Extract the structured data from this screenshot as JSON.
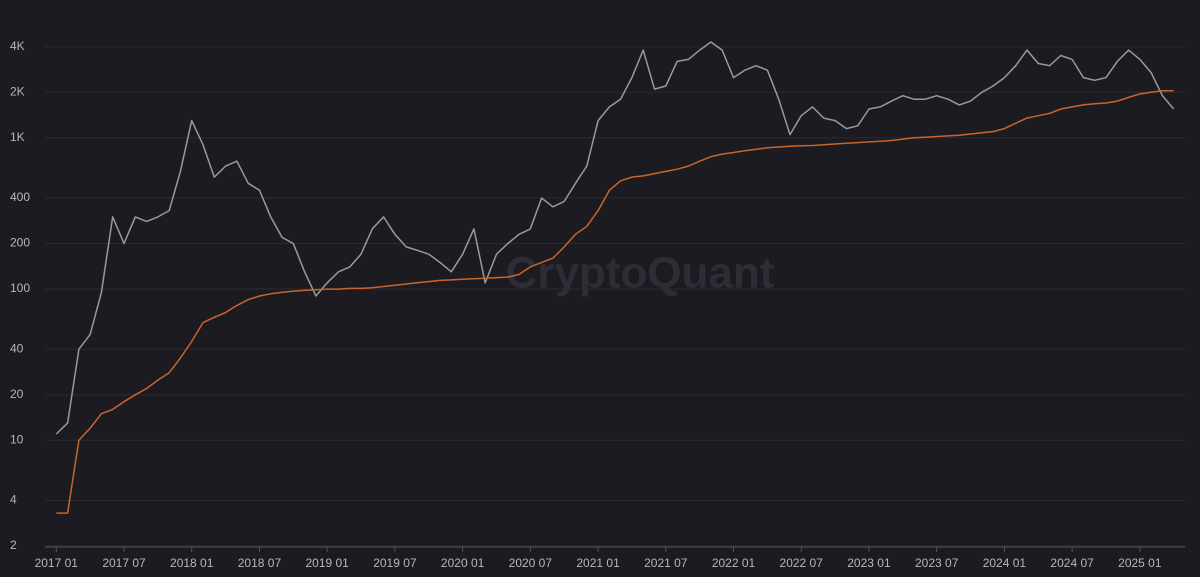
{
  "chart_data": {
    "type": "line",
    "watermark": "CryptoQuant",
    "log_y": true,
    "grid": true,
    "background": "#1d1b22",
    "x": [
      "2017-01",
      "2017-02",
      "2017-03",
      "2017-04",
      "2017-05",
      "2017-06",
      "2017-07",
      "2017-08",
      "2017-09",
      "2017-10",
      "2017-11",
      "2017-12",
      "2018-01",
      "2018-02",
      "2018-03",
      "2018-04",
      "2018-05",
      "2018-06",
      "2018-07",
      "2018-08",
      "2018-09",
      "2018-10",
      "2018-11",
      "2018-12",
      "2019-01",
      "2019-02",
      "2019-03",
      "2019-04",
      "2019-05",
      "2019-06",
      "2019-07",
      "2019-08",
      "2019-09",
      "2019-10",
      "2019-11",
      "2019-12",
      "2020-01",
      "2020-02",
      "2020-03",
      "2020-04",
      "2020-05",
      "2020-06",
      "2020-07",
      "2020-08",
      "2020-09",
      "2020-10",
      "2020-11",
      "2020-12",
      "2021-01",
      "2021-02",
      "2021-03",
      "2021-04",
      "2021-05",
      "2021-06",
      "2021-07",
      "2021-08",
      "2021-09",
      "2021-10",
      "2021-11",
      "2021-12",
      "2022-01",
      "2022-02",
      "2022-03",
      "2022-04",
      "2022-05",
      "2022-06",
      "2022-07",
      "2022-08",
      "2022-09",
      "2022-10",
      "2022-11",
      "2022-12",
      "2023-01",
      "2023-02",
      "2023-03",
      "2023-04",
      "2023-05",
      "2023-06",
      "2023-07",
      "2023-08",
      "2023-09",
      "2023-10",
      "2023-11",
      "2023-12",
      "2024-01",
      "2024-02",
      "2024-03",
      "2024-04",
      "2024-05",
      "2024-06",
      "2024-07",
      "2024-08",
      "2024-09",
      "2024-10",
      "2024-11",
      "2024-12",
      "2025-01",
      "2025-02",
      "2025-03",
      "2025-04"
    ],
    "series": [
      {
        "color": "#9a98a0",
        "values": [
          11,
          13,
          40,
          50,
          95,
          300,
          200,
          300,
          280,
          300,
          330,
          600,
          1300,
          900,
          550,
          650,
          700,
          500,
          450,
          300,
          220,
          200,
          130,
          90,
          110,
          130,
          140,
          170,
          250,
          300,
          230,
          190,
          180,
          170,
          150,
          130,
          170,
          250,
          110,
          170,
          200,
          230,
          250,
          400,
          350,
          380,
          500,
          650,
          1300,
          1600,
          1800,
          2500,
          3800,
          2100,
          2200,
          3200,
          3300,
          3800,
          4300,
          3800,
          2500,
          2800,
          3000,
          2800,
          1800,
          1050,
          1400,
          1600,
          1350,
          1300,
          1150,
          1200,
          1550,
          1600,
          1750,
          1900,
          1800,
          1800,
          1900,
          1800,
          1650,
          1750,
          2000,
          2200,
          2500,
          3000,
          3800,
          3100,
          3000,
          3500,
          3300,
          2500,
          2400,
          2500,
          3200,
          3800,
          3300,
          2700,
          1900,
          1550
        ]
      },
      {
        "color": "#c9652a",
        "values": [
          3.3,
          3.3,
          10,
          12,
          15,
          16,
          18,
          20,
          22,
          25,
          28,
          35,
          45,
          60,
          65,
          70,
          78,
          85,
          90,
          93,
          95,
          97,
          98,
          99,
          100,
          100,
          101,
          101,
          102,
          104,
          106,
          108,
          110,
          112,
          114,
          115,
          116,
          117,
          118,
          119,
          120,
          125,
          140,
          150,
          160,
          190,
          230,
          260,
          330,
          450,
          520,
          550,
          560,
          580,
          600,
          620,
          650,
          700,
          750,
          780,
          800,
          820,
          840,
          860,
          870,
          880,
          885,
          890,
          900,
          910,
          920,
          930,
          940,
          950,
          960,
          980,
          1000,
          1010,
          1020,
          1030,
          1040,
          1060,
          1080,
          1100,
          1150,
          1250,
          1350,
          1400,
          1450,
          1550,
          1600,
          1650,
          1680,
          1700,
          1750,
          1850,
          1950,
          2000,
          2050,
          2050
        ]
      }
    ],
    "xlim": [
      "2016-12",
      "2025-05"
    ],
    "xticks": [
      {
        "value": "2017-01",
        "label": "2017 01"
      },
      {
        "value": "2017-07",
        "label": "2017 07"
      },
      {
        "value": "2018-01",
        "label": "2018 01"
      },
      {
        "value": "2018-07",
        "label": "2018 07"
      },
      {
        "value": "2019-01",
        "label": "2019 01"
      },
      {
        "value": "2019-07",
        "label": "2019 07"
      },
      {
        "value": "2020-01",
        "label": "2020 01"
      },
      {
        "value": "2020-07",
        "label": "2020 07"
      },
      {
        "value": "2021-01",
        "label": "2021 01"
      },
      {
        "value": "2021-07",
        "label": "2021 07"
      },
      {
        "value": "2022-01",
        "label": "2022 01"
      },
      {
        "value": "2022-07",
        "label": "2022 07"
      },
      {
        "value": "2023-01",
        "label": "2023 01"
      },
      {
        "value": "2023-07",
        "label": "2023 07"
      },
      {
        "value": "2024-01",
        "label": "2024 01"
      },
      {
        "value": "2024-07",
        "label": "2024 07"
      },
      {
        "value": "2025-01",
        "label": "2025 01"
      }
    ],
    "ylim": [
      2,
      7000
    ],
    "yticks": [
      2,
      4,
      10,
      20,
      40,
      100,
      200,
      400,
      {
        "value": 1000,
        "label": "1K"
      },
      {
        "value": 2000,
        "label": "2K"
      },
      {
        "value": 4000,
        "label": "4K"
      }
    ]
  }
}
